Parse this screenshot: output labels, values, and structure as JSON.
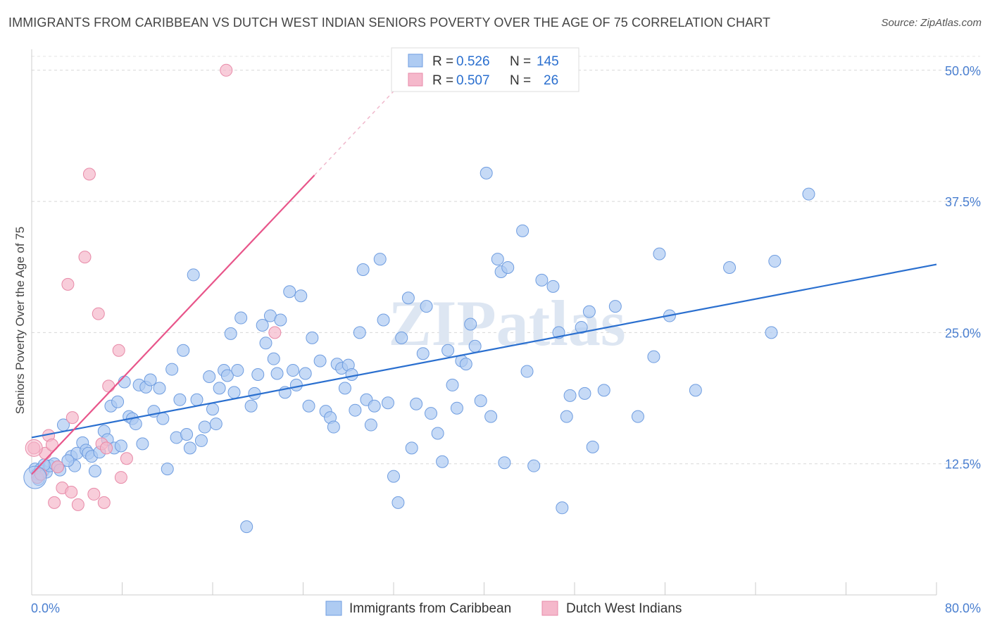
{
  "title": "IMMIGRANTS FROM CARIBBEAN VS DUTCH WEST INDIAN SENIORS POVERTY OVER THE AGE OF 75 CORRELATION CHART",
  "source": "Source: ZipAtlas.com",
  "watermark": "ZIPatlas",
  "chart_data": {
    "type": "scatter",
    "ylabel": "Seniors Poverty Over the Age of 75",
    "xlim": [
      0,
      80
    ],
    "ylim": [
      0,
      52
    ],
    "x_tick_labels": [
      "0.0%",
      "80.0%"
    ],
    "y_ticks": [
      12.5,
      25.0,
      37.5,
      50.0
    ],
    "y_tick_labels": [
      "12.5%",
      "25.0%",
      "37.5%",
      "50.0%"
    ],
    "grid": "horizontal dashed",
    "legend_position": "top-center",
    "stats": [
      {
        "r_label": "R =",
        "r_value": "0.526",
        "n_label": "N =",
        "n_value": "145"
      },
      {
        "r_label": "R =",
        "r_value": "0.507",
        "n_label": "N =",
        "n_value": "26"
      }
    ],
    "series": [
      {
        "name": "Immigrants from Caribbean",
        "color": "#6f9de0",
        "fill": "#aecbf2",
        "line_color": "#2a6fcf",
        "trend": {
          "x0": 0,
          "y0": 15.0,
          "x1": 80,
          "y1": 31.5
        },
        "points": [
          [
            0.3,
            12.0
          ],
          [
            0.5,
            11.5
          ],
          [
            0.8,
            12.0
          ],
          [
            1.0,
            11.8
          ],
          [
            1.3,
            11.7
          ],
          [
            1.6,
            12.3
          ],
          [
            2.0,
            12.5
          ],
          [
            2.3,
            12.2
          ],
          [
            2.8,
            16.2
          ],
          [
            3.5,
            13.2
          ],
          [
            3.8,
            12.3
          ],
          [
            4.0,
            13.5
          ],
          [
            4.5,
            14.5
          ],
          [
            4.8,
            13.8
          ],
          [
            5.0,
            13.5
          ],
          [
            5.3,
            13.2
          ],
          [
            5.6,
            11.8
          ],
          [
            6.0,
            13.6
          ],
          [
            6.4,
            15.6
          ],
          [
            6.7,
            14.8
          ],
          [
            7.0,
            18.0
          ],
          [
            7.3,
            14.0
          ],
          [
            7.6,
            18.4
          ],
          [
            7.9,
            14.2
          ],
          [
            8.2,
            20.3
          ],
          [
            8.6,
            17.0
          ],
          [
            8.9,
            16.8
          ],
          [
            9.2,
            16.3
          ],
          [
            9.5,
            20.0
          ],
          [
            9.8,
            14.4
          ],
          [
            10.1,
            19.8
          ],
          [
            10.5,
            20.5
          ],
          [
            10.8,
            17.5
          ],
          [
            11.3,
            19.7
          ],
          [
            11.6,
            16.8
          ],
          [
            12.0,
            12.0
          ],
          [
            12.4,
            21.5
          ],
          [
            12.8,
            15.0
          ],
          [
            13.1,
            18.6
          ],
          [
            13.4,
            23.3
          ],
          [
            13.7,
            15.3
          ],
          [
            14.0,
            14.0
          ],
          [
            14.3,
            30.5
          ],
          [
            14.6,
            18.6
          ],
          [
            15.0,
            14.7
          ],
          [
            15.3,
            16.0
          ],
          [
            15.7,
            20.8
          ],
          [
            16.0,
            17.7
          ],
          [
            16.3,
            16.3
          ],
          [
            16.6,
            19.7
          ],
          [
            17.0,
            21.4
          ],
          [
            17.3,
            20.9
          ],
          [
            17.6,
            24.9
          ],
          [
            17.9,
            19.3
          ],
          [
            18.2,
            21.4
          ],
          [
            18.5,
            26.4
          ],
          [
            19.0,
            6.5
          ],
          [
            19.4,
            18.0
          ],
          [
            19.7,
            19.2
          ],
          [
            20.0,
            21.0
          ],
          [
            20.4,
            25.7
          ],
          [
            20.7,
            24.0
          ],
          [
            21.1,
            26.6
          ],
          [
            21.4,
            22.5
          ],
          [
            21.7,
            21.1
          ],
          [
            22.0,
            26.2
          ],
          [
            22.4,
            19.3
          ],
          [
            22.8,
            28.9
          ],
          [
            23.1,
            21.4
          ],
          [
            23.4,
            20.0
          ],
          [
            23.8,
            28.5
          ],
          [
            24.2,
            21.1
          ],
          [
            24.5,
            18.0
          ],
          [
            24.8,
            24.5
          ],
          [
            25.5,
            22.3
          ],
          [
            26.0,
            17.5
          ],
          [
            26.4,
            16.9
          ],
          [
            26.7,
            16.0
          ],
          [
            27.0,
            22.0
          ],
          [
            27.4,
            21.6
          ],
          [
            27.7,
            19.7
          ],
          [
            28.0,
            21.9
          ],
          [
            28.3,
            21.0
          ],
          [
            28.6,
            17.6
          ],
          [
            29.0,
            25.0
          ],
          [
            29.3,
            31.0
          ],
          [
            29.6,
            18.6
          ],
          [
            30.0,
            16.2
          ],
          [
            30.3,
            18.0
          ],
          [
            30.8,
            32.0
          ],
          [
            31.1,
            26.2
          ],
          [
            31.5,
            18.3
          ],
          [
            32.0,
            11.3
          ],
          [
            32.4,
            8.8
          ],
          [
            32.7,
            24.5
          ],
          [
            33.3,
            28.3
          ],
          [
            33.6,
            14.0
          ],
          [
            34.0,
            18.2
          ],
          [
            34.6,
            23.0
          ],
          [
            34.9,
            27.5
          ],
          [
            35.3,
            17.3
          ],
          [
            35.9,
            15.4
          ],
          [
            36.3,
            12.7
          ],
          [
            36.8,
            23.3
          ],
          [
            37.2,
            20.0
          ],
          [
            37.6,
            17.8
          ],
          [
            38.0,
            22.3
          ],
          [
            38.4,
            22.0
          ],
          [
            38.8,
            25.8
          ],
          [
            39.2,
            23.7
          ],
          [
            39.7,
            18.5
          ],
          [
            40.2,
            40.2
          ],
          [
            40.6,
            17.0
          ],
          [
            41.2,
            32.0
          ],
          [
            41.5,
            30.8
          ],
          [
            41.8,
            12.6
          ],
          [
            42.1,
            31.2
          ],
          [
            43.4,
            34.7
          ],
          [
            43.8,
            21.3
          ],
          [
            44.4,
            12.3
          ],
          [
            45.1,
            30.0
          ],
          [
            46.1,
            29.4
          ],
          [
            46.6,
            25.0
          ],
          [
            46.9,
            8.3
          ],
          [
            47.3,
            17.0
          ],
          [
            47.6,
            19.0
          ],
          [
            48.6,
            25.5
          ],
          [
            48.9,
            19.2
          ],
          [
            49.3,
            27.0
          ],
          [
            49.6,
            14.1
          ],
          [
            50.6,
            19.5
          ],
          [
            51.6,
            27.5
          ],
          [
            53.6,
            17.0
          ],
          [
            55.0,
            22.7
          ],
          [
            55.5,
            32.5
          ],
          [
            56.4,
            26.6
          ],
          [
            58.7,
            19.5
          ],
          [
            61.7,
            31.2
          ],
          [
            65.4,
            25.0
          ],
          [
            65.7,
            31.8
          ],
          [
            68.7,
            38.2
          ],
          [
            0.6,
            11.0
          ],
          [
            1.1,
            12.4
          ],
          [
            2.5,
            11.9
          ],
          [
            3.2,
            12.8
          ]
        ]
      },
      {
        "name": "Dutch West Indians",
        "color": "#e88aa8",
        "fill": "#f5b8cb",
        "line_color": "#e8558a",
        "trend": {
          "x0": 0,
          "y0": 11.5,
          "x1": 25,
          "y1": 40.0
        },
        "trend_ext": {
          "x0": 25,
          "y0": 40.0,
          "x1": 32,
          "y1": 48.0
        },
        "points": [
          [
            0.2,
            14.0
          ],
          [
            0.5,
            11.2
          ],
          [
            0.8,
            11.5
          ],
          [
            1.2,
            13.5
          ],
          [
            1.5,
            15.2
          ],
          [
            1.8,
            14.3
          ],
          [
            2.0,
            8.8
          ],
          [
            2.3,
            12.2
          ],
          [
            2.7,
            10.2
          ],
          [
            3.2,
            29.6
          ],
          [
            3.5,
            9.8
          ],
          [
            3.6,
            16.9
          ],
          [
            4.1,
            8.6
          ],
          [
            4.7,
            32.2
          ],
          [
            5.1,
            40.1
          ],
          [
            5.5,
            9.6
          ],
          [
            5.9,
            26.8
          ],
          [
            6.2,
            14.4
          ],
          [
            6.4,
            8.8
          ],
          [
            6.6,
            14.0
          ],
          [
            6.8,
            19.9
          ],
          [
            7.7,
            23.3
          ],
          [
            7.9,
            11.2
          ],
          [
            8.4,
            13.0
          ],
          [
            17.2,
            50.0
          ],
          [
            21.5,
            25.0
          ]
        ]
      }
    ]
  }
}
